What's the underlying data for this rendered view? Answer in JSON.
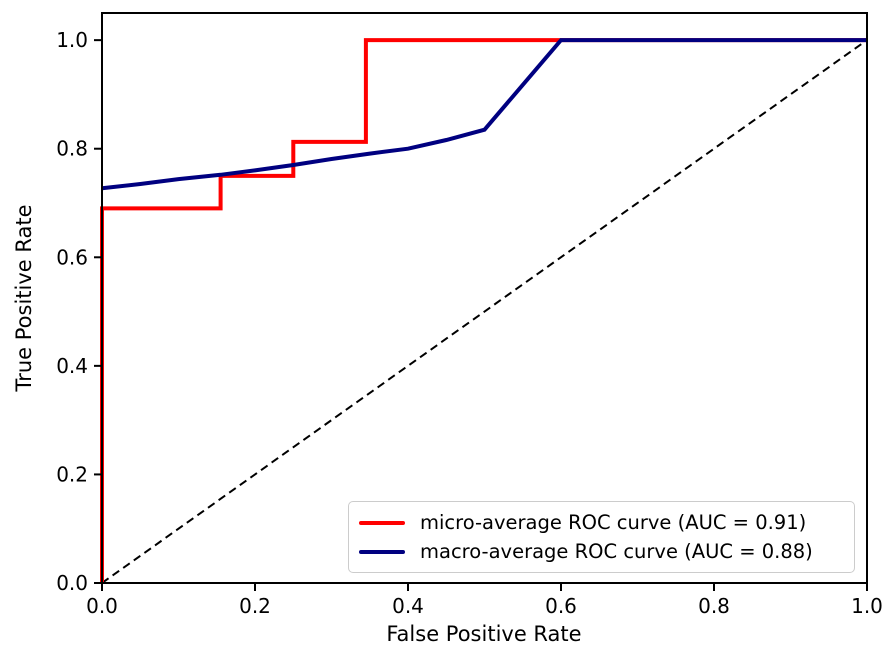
{
  "chart_data": {
    "type": "line",
    "title": "",
    "xlabel": "False Positive Rate",
    "ylabel": "True Positive Rate",
    "xlim": [
      0.0,
      1.0
    ],
    "ylim": [
      0.0,
      1.05
    ],
    "grid": false,
    "x_tick_labels": [
      "0.0",
      "0.2",
      "0.4",
      "0.6",
      "0.8",
      "1.0"
    ],
    "y_tick_labels": [
      "0.0",
      "0.2",
      "0.4",
      "0.6",
      "0.8",
      "1.0"
    ],
    "legend_position": "lower right",
    "axis_color": "#000000",
    "series": [
      {
        "name": "chance-diagonal",
        "in_legend": false,
        "color": "#000000",
        "style": "dashed",
        "line_width": 2,
        "points": [
          [
            0.0,
            0.0
          ],
          [
            1.0,
            1.0
          ]
        ]
      },
      {
        "name": "micro-average-roc",
        "in_legend": true,
        "legend_label": "micro-average ROC curve (AUC = 0.91)",
        "auc": 0.91,
        "color": "#ff0000",
        "style": "solid",
        "line_width": 4,
        "points": [
          [
            0.0,
            0.0
          ],
          [
            0.0,
            0.69
          ],
          [
            0.155,
            0.69
          ],
          [
            0.155,
            0.75
          ],
          [
            0.25,
            0.75
          ],
          [
            0.25,
            0.8125
          ],
          [
            0.345,
            0.8125
          ],
          [
            0.345,
            1.0
          ],
          [
            1.0,
            1.0
          ]
        ]
      },
      {
        "name": "macro-average-roc",
        "in_legend": true,
        "legend_label": "macro-average ROC curve (AUC = 0.88)",
        "auc": 0.88,
        "color": "#000080",
        "style": "solid",
        "line_width": 4,
        "points": [
          [
            0.0,
            0.727
          ],
          [
            0.05,
            0.735
          ],
          [
            0.1,
            0.744
          ],
          [
            0.155,
            0.752
          ],
          [
            0.2,
            0.76
          ],
          [
            0.25,
            0.77
          ],
          [
            0.3,
            0.781
          ],
          [
            0.35,
            0.791
          ],
          [
            0.4,
            0.8
          ],
          [
            0.45,
            0.816
          ],
          [
            0.5,
            0.835
          ],
          [
            0.6,
            1.0
          ],
          [
            1.0,
            1.0
          ]
        ]
      }
    ]
  }
}
